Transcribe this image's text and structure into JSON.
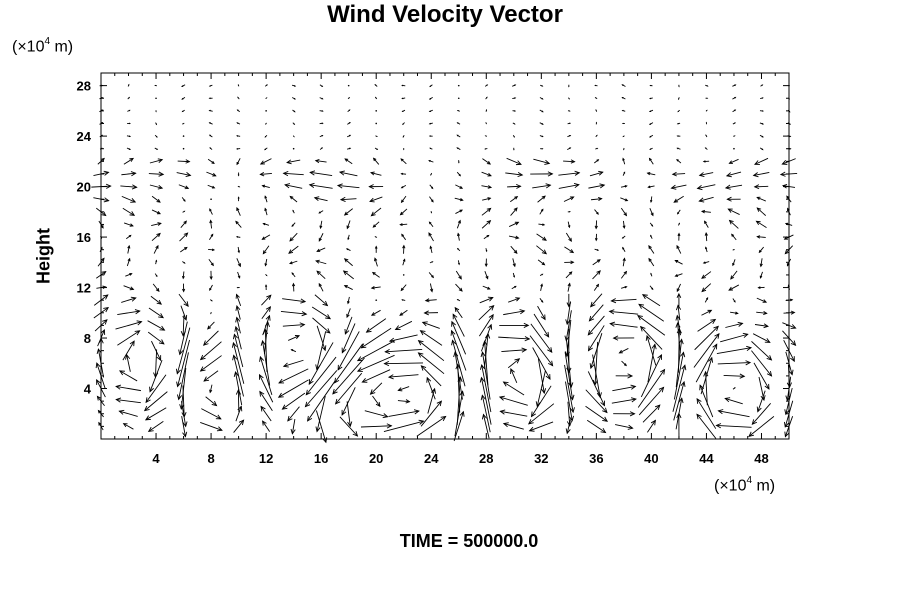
{
  "chart_data": {
    "type": "vector-field",
    "title": "Wind Velocity Vector",
    "ylabel": "Height",
    "y_unit": {
      "prefix": "(×10",
      "exp": "4",
      "suffix": " m)"
    },
    "x_unit": {
      "prefix": "(×10",
      "exp": "4",
      "suffix": " m)"
    },
    "xlim": [
      0,
      50
    ],
    "ylim": [
      0,
      29
    ],
    "x_ticks": [
      4,
      8,
      12,
      16,
      20,
      24,
      28,
      32,
      36,
      40,
      44,
      48
    ],
    "y_ticks": [
      4,
      8,
      12,
      16,
      20,
      24,
      28
    ],
    "grid": false,
    "footer": "TIME = 500000.0",
    "field": {
      "x_start": 0,
      "x_step": 2,
      "x_count": 26,
      "y_start": 1,
      "y_step": 1,
      "y_count": 28,
      "dominant_features": [
        "strong swirling flow below height 12 with large vectors",
        "horizontal jet near height 20-21",
        "small vectors above height 22",
        "circulation cells centred near x 8, 14, 24, 30, 38, 46 and height 4-8"
      ]
    }
  }
}
